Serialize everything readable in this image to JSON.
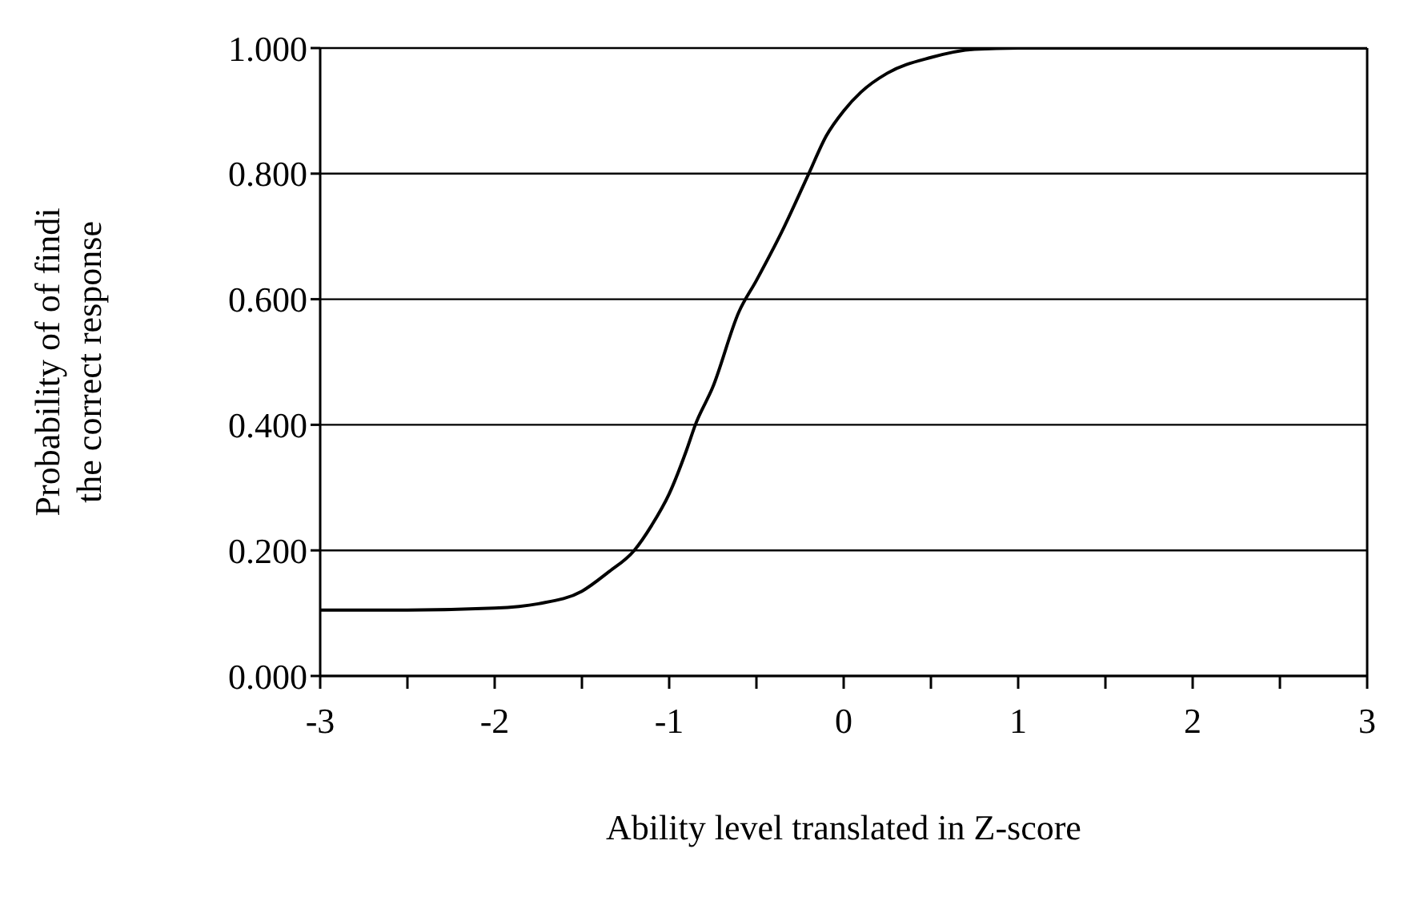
{
  "chart_data": {
    "type": "line",
    "xlabel": "Ability level translated in Z-score",
    "ylabel": "Probability of of findi\nthe correct response",
    "series": [
      {
        "color": "#000000",
        "x": [
          -3,
          -2.5,
          -2,
          -1.75,
          -1.5,
          -1.35,
          -1.2,
          -1.1,
          -1,
          -0.9,
          -0.85,
          -0.75,
          -0.6,
          -0.5,
          -0.35,
          -0.2,
          -0.1,
          0,
          0.1,
          0.25,
          0.5,
          0.75,
          1,
          2,
          3
        ],
        "values": [
          0.105,
          0.105,
          0.108,
          0.115,
          0.135,
          0.165,
          0.2,
          0.24,
          0.29,
          0.36,
          0.4,
          0.46,
          0.58,
          0.63,
          0.71,
          0.8,
          0.86,
          0.9,
          0.93,
          0.96,
          0.985,
          0.998,
          1.0,
          1.0,
          1.0
        ]
      }
    ],
    "xlim": [
      -3,
      3
    ],
    "xticks": [
      -3,
      {
        "value": -2.5,
        "label": null
      },
      -2,
      {
        "value": -1.5,
        "label": null
      },
      -1,
      {
        "value": -0.5,
        "label": null
      },
      0,
      {
        "value": 0.5,
        "label": null
      },
      1,
      {
        "value": 1.5,
        "label": null
      },
      2,
      {
        "value": 2.5,
        "label": null
      },
      3
    ],
    "ylim": [
      0,
      1
    ],
    "yticks": [
      {
        "value": 0,
        "label": "0.000"
      },
      {
        "value": 0.2,
        "label": "0.200"
      },
      {
        "value": 0.4,
        "label": "0.400"
      },
      {
        "value": 0.6,
        "label": "0.600"
      },
      {
        "value": 0.8,
        "label": "0.800"
      },
      {
        "value": 1,
        "label": "1.000"
      }
    ],
    "grid": "y",
    "marker": "none",
    "line_style": "solid"
  }
}
